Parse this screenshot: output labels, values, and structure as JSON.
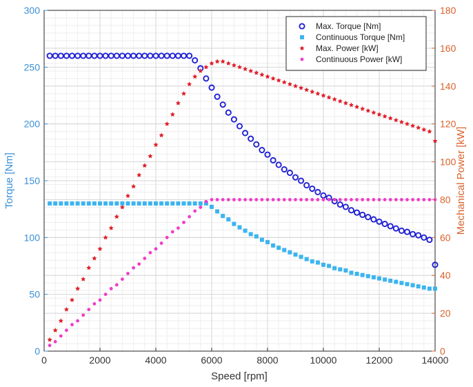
{
  "chart_data": {
    "type": "scatter",
    "xlabel": "Speed [rpm]",
    "ylabel_left": "Torque [Nm]",
    "ylabel_right": "Mechanical Power [kW]",
    "xlim": [
      0,
      14000
    ],
    "ylim_left": [
      0,
      300
    ],
    "ylim_right": [
      0,
      180
    ],
    "x_ticks": [
      0,
      2000,
      4000,
      6000,
      8000,
      10000,
      12000,
      14000
    ],
    "y_left_ticks": [
      0,
      50,
      100,
      150,
      200,
      250,
      300
    ],
    "y_right_ticks": [
      0,
      20,
      40,
      60,
      80,
      100,
      120,
      140,
      160,
      180
    ],
    "grid": true,
    "legend_position": "top-right",
    "colors": {
      "left_axis": "#3b8fd6",
      "right_axis": "#d9622b",
      "max_torque": "#1f1fd6",
      "cont_torque": "#3cb4f0",
      "max_power": "#e0202a",
      "cont_power": "#f03cc8"
    },
    "series": [
      {
        "name": "Max. Torque [Nm]",
        "axis": "left",
        "marker": "circle",
        "x": [
          200,
          400,
          600,
          800,
          1000,
          1200,
          1400,
          1600,
          1800,
          2000,
          2200,
          2400,
          2600,
          2800,
          3000,
          3200,
          3400,
          3600,
          3800,
          4000,
          4200,
          4400,
          4600,
          4800,
          5000,
          5200,
          5400,
          5600,
          5800,
          6000,
          6200,
          6400,
          6600,
          6800,
          7000,
          7200,
          7400,
          7600,
          7800,
          8000,
          8200,
          8400,
          8600,
          8800,
          9000,
          9200,
          9400,
          9600,
          9800,
          10000,
          10200,
          10400,
          10600,
          10800,
          11000,
          11200,
          11400,
          11600,
          11800,
          12000,
          12200,
          12400,
          12600,
          12800,
          13000,
          13200,
          13400,
          13600,
          13800,
          14000
        ],
        "y": [
          260,
          260,
          260,
          260,
          260,
          260,
          260,
          260,
          260,
          260,
          260,
          260,
          260,
          260,
          260,
          260,
          260,
          260,
          260,
          260,
          260,
          260,
          260,
          260,
          260,
          260,
          256,
          249,
          240,
          232,
          224,
          217,
          210,
          204,
          198,
          192,
          187,
          182,
          177,
          173,
          168,
          164,
          160,
          157,
          153,
          150,
          146,
          143,
          140,
          137,
          135,
          132,
          129,
          127,
          124,
          122,
          120,
          118,
          116,
          114,
          112,
          110,
          108,
          106,
          105,
          103,
          102,
          100,
          98,
          76
        ]
      },
      {
        "name": "Continuous Torque [Nm]",
        "axis": "left",
        "marker": "square",
        "x": [
          200,
          400,
          600,
          800,
          1000,
          1200,
          1400,
          1600,
          1800,
          2000,
          2200,
          2400,
          2600,
          2800,
          3000,
          3200,
          3400,
          3600,
          3800,
          4000,
          4200,
          4400,
          4600,
          4800,
          5000,
          5200,
          5400,
          5600,
          5800,
          6000,
          6200,
          6400,
          6600,
          6800,
          7000,
          7200,
          7400,
          7600,
          7800,
          8000,
          8200,
          8400,
          8600,
          8800,
          9000,
          9200,
          9400,
          9600,
          9800,
          10000,
          10200,
          10400,
          10600,
          10800,
          11000,
          11200,
          11400,
          11600,
          11800,
          12000,
          12200,
          12400,
          12600,
          12800,
          13000,
          13200,
          13400,
          13600,
          13800,
          14000
        ],
        "y": [
          130,
          130,
          130,
          130,
          130,
          130,
          130,
          130,
          130,
          130,
          130,
          130,
          130,
          130,
          130,
          130,
          130,
          130,
          130,
          130,
          130,
          130,
          130,
          130,
          130,
          130,
          130,
          130,
          130,
          127,
          123,
          119,
          116,
          112,
          109,
          106,
          103,
          101,
          98,
          96,
          93,
          91,
          89,
          87,
          85,
          83,
          81,
          79,
          78,
          76,
          75,
          73,
          72,
          71,
          69,
          68,
          67,
          66,
          65,
          64,
          63,
          62,
          61,
          60,
          59,
          58,
          57,
          56,
          55,
          55
        ]
      },
      {
        "name": "Max. Power [kW]",
        "axis": "right",
        "marker": "star",
        "x": [
          200,
          400,
          600,
          800,
          1000,
          1200,
          1400,
          1600,
          1800,
          2000,
          2200,
          2400,
          2600,
          2800,
          3000,
          3200,
          3400,
          3600,
          3800,
          4000,
          4200,
          4400,
          4600,
          4800,
          5000,
          5200,
          5400,
          5600,
          5800,
          6000,
          6200,
          6400,
          6600,
          6800,
          7000,
          7200,
          7400,
          7600,
          7800,
          8000,
          8200,
          8400,
          8600,
          8800,
          9000,
          9200,
          9400,
          9600,
          9800,
          10000,
          10200,
          10400,
          10600,
          10800,
          11000,
          11200,
          11400,
          11600,
          11800,
          12000,
          12200,
          12400,
          12600,
          12800,
          13000,
          13200,
          13400,
          13600,
          13800,
          14000
        ],
        "y": [
          6,
          11,
          16,
          22,
          27,
          33,
          38,
          44,
          49,
          54,
          60,
          65,
          71,
          76,
          82,
          87,
          93,
          98,
          103,
          109,
          114,
          120,
          125,
          131,
          136,
          141,
          145,
          148,
          150,
          152,
          153,
          153,
          152,
          151,
          150,
          149,
          148,
          147,
          146,
          145,
          144,
          143,
          142,
          141,
          140,
          139,
          138,
          137,
          136,
          135,
          134,
          133,
          132,
          131,
          130,
          129,
          128,
          127,
          126,
          125,
          124,
          123,
          122,
          121,
          120,
          119,
          118,
          117,
          116,
          111
        ]
      },
      {
        "name": "Continuous Power [kW]",
        "axis": "right",
        "marker": "dot",
        "x": [
          200,
          400,
          600,
          800,
          1000,
          1200,
          1400,
          1600,
          1800,
          2000,
          2200,
          2400,
          2600,
          2800,
          3000,
          3200,
          3400,
          3600,
          3800,
          4000,
          4200,
          4400,
          4600,
          4800,
          5000,
          5200,
          5400,
          5600,
          5800,
          6000,
          6200,
          6400,
          6600,
          6800,
          7000,
          7200,
          7400,
          7600,
          7800,
          8000,
          8200,
          8400,
          8600,
          8800,
          9000,
          9200,
          9400,
          9600,
          9800,
          10000,
          10200,
          10400,
          10600,
          10800,
          11000,
          11200,
          11400,
          11600,
          11800,
          12000,
          12200,
          12400,
          12600,
          12800,
          13000,
          13200,
          13400,
          13600,
          13800,
          14000
        ],
        "y": [
          3,
          5,
          8,
          11,
          14,
          16,
          19,
          22,
          25,
          27,
          30,
          33,
          35,
          38,
          41,
          44,
          46,
          49,
          52,
          54,
          57,
          60,
          63,
          65,
          68,
          71,
          74,
          76,
          79,
          80,
          80,
          80,
          80,
          80,
          80,
          80,
          80,
          80,
          80,
          80,
          80,
          80,
          80,
          80,
          80,
          80,
          80,
          80,
          80,
          80,
          80,
          80,
          80,
          80,
          80,
          80,
          80,
          80,
          80,
          80,
          80,
          80,
          80,
          80,
          80,
          80,
          80,
          80,
          80,
          80
        ]
      }
    ]
  }
}
